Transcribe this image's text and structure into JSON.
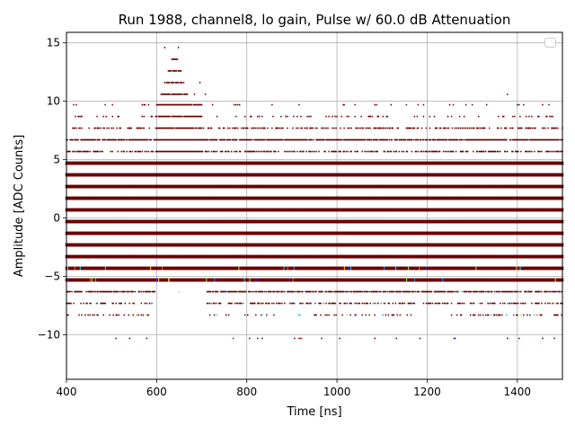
{
  "chart_data": {
    "type": "scatter",
    "title": "Run 1988, channel8, lo gain, Pulse w/ 60.0 dB Attenuation",
    "xlabel": "Time [ns]",
    "ylabel": "Amplitude [ADC Counts]",
    "xlim": [
      400,
      1500
    ],
    "ylim": [
      -13.8,
      15.9
    ],
    "xticks": [
      400,
      600,
      800,
      1000,
      1200,
      1400
    ],
    "yticks": [
      -10,
      -5,
      0,
      5,
      10,
      15
    ],
    "xtick_labels": [
      "400",
      "600",
      "800",
      "1000",
      "1200",
      "1400"
    ],
    "ytick_labels": [
      "−10",
      "−5",
      "0",
      "5",
      "10",
      "15"
    ],
    "grid": true,
    "legend": "top-right (empty)",
    "colors": {
      "dominant": "#6b0000",
      "accents": [
        "#00e5ff",
        "#ffd000",
        "#2a2aff",
        "#7cff4a",
        "#ff5a1a",
        "#1e90ff"
      ]
    },
    "series": [
      {
        "levels": [
          -10.3,
          -8.3,
          -7.3,
          -6.3,
          -5.3,
          -4.3,
          -3.3,
          -2.3,
          -1.3,
          -0.3,
          0.7,
          1.7,
          2.7,
          3.7,
          4.7,
          5.7,
          6.7,
          7.7,
          8.7,
          9.7,
          10.6,
          11.6,
          12.6,
          13.6,
          14.6
        ],
        "dense_levels": [
          -5.3,
          -4.3,
          -3.3,
          -2.3,
          -1.3,
          -0.3,
          0.7,
          1.7,
          2.7,
          3.7,
          4.7
        ],
        "pulse_peak_time": 640,
        "pulse_peak_amplitude": 14.6,
        "sampling_ns": 2
      }
    ]
  }
}
